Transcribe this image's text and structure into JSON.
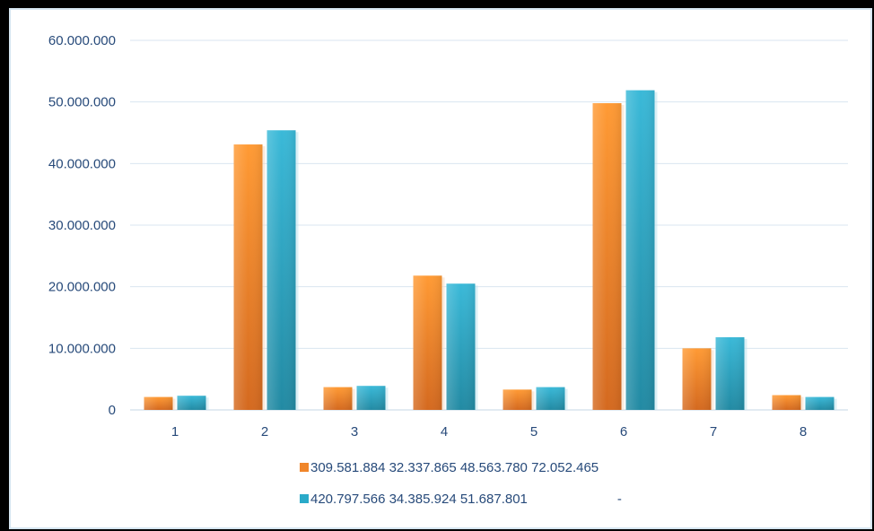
{
  "chart_data": {
    "type": "bar",
    "categories": [
      "1",
      "2",
      "3",
      "4",
      "5",
      "6",
      "7",
      "8"
    ],
    "ylim": [
      0,
      60000000
    ],
    "y_ticks": [
      0,
      10000000,
      20000000,
      30000000,
      40000000,
      50000000,
      60000000
    ],
    "y_tick_labels": [
      "0",
      "10.000.000",
      "20.000.000",
      "30.000.000",
      "40.000.000",
      "50.000.000",
      "60.000.000"
    ],
    "grid": true,
    "legend_position": "bottom",
    "series": [
      {
        "name": "309.581.884 32.337.865 48.563.780 72.052.465",
        "color": "#f0862a",
        "values": [
          2100000,
          43100000,
          3700000,
          21800000,
          3300000,
          49800000,
          10000000,
          2400000
        ]
      },
      {
        "name": "420.797.566 34.385.924 51.687.801                        -",
        "color": "#2aaac9",
        "values": [
          2300000,
          45400000,
          3900000,
          20500000,
          3700000,
          51900000,
          11800000,
          2100000
        ]
      }
    ]
  }
}
